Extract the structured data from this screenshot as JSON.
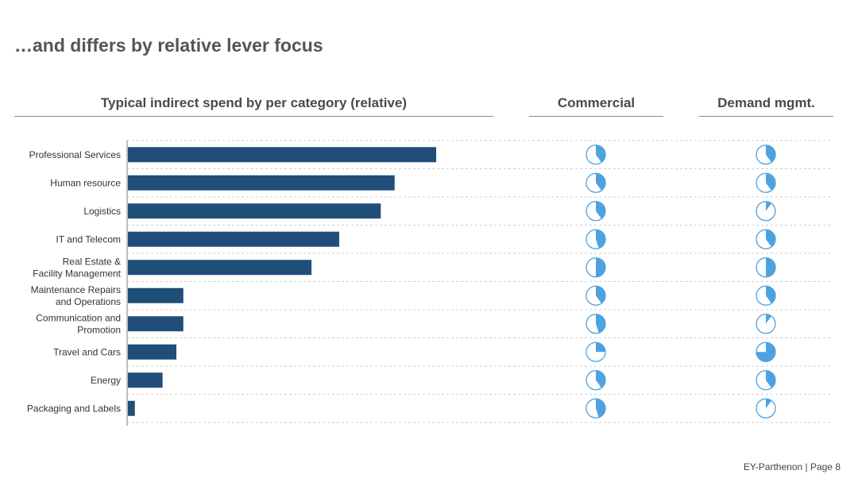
{
  "title": "…and differs by relative lever focus",
  "headers": {
    "spend": "Typical indirect spend by per category (relative)",
    "commercial": "Commercial",
    "demand": "Demand mgmt."
  },
  "colors": {
    "bar": "#1f4e79",
    "pie_fill": "#4da3e0",
    "pie_outline": "#4da3e0",
    "gridline": "#cfcfcf",
    "axis": "#7f7f7f"
  },
  "chart_data": {
    "type": "bar",
    "orientation": "horizontal",
    "title": "Typical indirect spend by per category (relative)",
    "xlabel": "",
    "ylabel": "",
    "xlim": [
      0,
      100
    ],
    "grid": true,
    "categories": [
      [
        "Professional Services"
      ],
      [
        "Human resource"
      ],
      [
        "Logistics"
      ],
      [
        "IT and Telecom"
      ],
      [
        "Real Estate &",
        "Facility Management"
      ],
      [
        "Maintenance Repairs",
        "and Operations"
      ],
      [
        "Communication and",
        "Promotion"
      ],
      [
        "Travel and Cars"
      ],
      [
        "Energy"
      ],
      [
        "Packaging and Labels"
      ]
    ],
    "values": [
      89,
      77,
      73,
      61,
      53,
      16,
      16,
      14,
      10,
      2
    ],
    "harvey_balls": {
      "commercial": [
        0.4,
        0.4,
        0.4,
        0.45,
        0.5,
        0.4,
        0.45,
        0.25,
        0.4,
        0.45
      ],
      "demand": [
        0.4,
        0.4,
        0.1,
        0.4,
        0.5,
        0.4,
        0.1,
        0.75,
        0.4,
        0.1
      ]
    }
  },
  "footer": "EY-Parthenon | Page 8"
}
